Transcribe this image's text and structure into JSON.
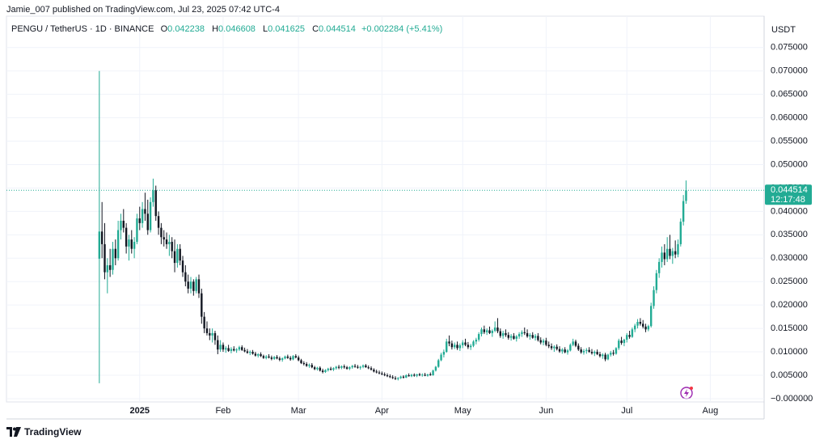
{
  "publisher": "Jamie_007 published on TradingView.com, Jul 23, 2025 07:42 UTC-4",
  "footer": "TradingView",
  "chart_data": {
    "type": "candlestick",
    "symbol": "PENGU / TetherUS · 1D · BINANCE",
    "ohlc_labels": [
      "O",
      "H",
      "L",
      "C"
    ],
    "change": "+0.002284 (+5.41%)",
    "y_unit": "USDT",
    "countdown": "12:17:48",
    "up_color": "#22ab94",
    "down_color": "#131722",
    "grid": true,
    "xlim": [
      -34.5,
      247
    ],
    "xticks": [
      {
        "value": 15,
        "label": "2025"
      },
      {
        "value": 46,
        "label": "Feb"
      },
      {
        "value": 74,
        "label": "Mar"
      },
      {
        "value": 105,
        "label": "Apr"
      },
      {
        "value": 135,
        "label": "May"
      },
      {
        "value": 166,
        "label": "Jun"
      },
      {
        "value": 196,
        "label": "Jul"
      },
      {
        "value": 227,
        "label": "Aug"
      }
    ],
    "ylim": [
      -0.0007,
      0.0817
    ],
    "yticks": [
      {
        "value": 0,
        "label": "−0.000000"
      },
      {
        "value": 0.005,
        "label": "0.005000"
      },
      {
        "value": 0.01,
        "label": "0.010000"
      },
      {
        "value": 0.015,
        "label": "0.015000"
      },
      {
        "value": 0.02,
        "label": "0.020000"
      },
      {
        "value": 0.025,
        "label": "0.025000"
      },
      {
        "value": 0.03,
        "label": "0.030000"
      },
      {
        "value": 0.035,
        "label": "0.035000"
      },
      {
        "value": 0.04,
        "label": "0.040000"
      },
      {
        "value": 0.045,
        "label": "0.045000"
      },
      {
        "value": 0.05,
        "label": "0.050000"
      },
      {
        "value": 0.055,
        "label": "0.055000"
      },
      {
        "value": 0.06,
        "label": "0.060000"
      },
      {
        "value": 0.065,
        "label": "0.065000"
      },
      {
        "value": 0.07,
        "label": "0.070000"
      },
      {
        "value": 0.075,
        "label": "0.075000"
      }
    ],
    "candles": [
      [
        0.0299,
        0.07,
        0.0033,
        0.0357
      ],
      [
        0.0357,
        0.042,
        0.03,
        0.033
      ],
      [
        0.033,
        0.0375,
        0.0255,
        0.027
      ],
      [
        0.027,
        0.03,
        0.0225,
        0.0285
      ],
      [
        0.0285,
        0.032,
        0.026,
        0.0275
      ],
      [
        0.0275,
        0.0335,
        0.0265,
        0.032
      ],
      [
        0.032,
        0.034,
        0.0285,
        0.03
      ],
      [
        0.03,
        0.038,
        0.0295,
        0.036
      ],
      [
        0.036,
        0.0395,
        0.034,
        0.038
      ],
      [
        0.038,
        0.0405,
        0.0355,
        0.0365
      ],
      [
        0.0365,
        0.0375,
        0.031,
        0.0325
      ],
      [
        0.0325,
        0.035,
        0.0295,
        0.034
      ],
      [
        0.034,
        0.036,
        0.031,
        0.032
      ],
      [
        0.032,
        0.0345,
        0.03,
        0.0335
      ],
      [
        0.0335,
        0.0395,
        0.033,
        0.0385
      ],
      [
        0.0385,
        0.041,
        0.036,
        0.0375
      ],
      [
        0.0375,
        0.042,
        0.0365,
        0.0405
      ],
      [
        0.0405,
        0.044,
        0.038,
        0.0395
      ],
      [
        0.0395,
        0.0425,
        0.035,
        0.036
      ],
      [
        0.036,
        0.043,
        0.0355,
        0.042
      ],
      [
        0.042,
        0.047,
        0.041,
        0.0445
      ],
      [
        0.0445,
        0.0455,
        0.038,
        0.039
      ],
      [
        0.039,
        0.04,
        0.035,
        0.0365
      ],
      [
        0.0365,
        0.0375,
        0.033,
        0.0345
      ],
      [
        0.0345,
        0.036,
        0.0325,
        0.034
      ],
      [
        0.034,
        0.0355,
        0.032,
        0.033
      ],
      [
        0.033,
        0.035,
        0.0305,
        0.0335
      ],
      [
        0.0335,
        0.0345,
        0.03,
        0.0315
      ],
      [
        0.0315,
        0.034,
        0.027,
        0.029
      ],
      [
        0.029,
        0.033,
        0.028,
        0.032
      ],
      [
        0.032,
        0.033,
        0.0285,
        0.0295
      ],
      [
        0.0295,
        0.0305,
        0.026,
        0.027
      ],
      [
        0.027,
        0.0285,
        0.024,
        0.025
      ],
      [
        0.025,
        0.0265,
        0.0225,
        0.0235
      ],
      [
        0.0235,
        0.026,
        0.0225,
        0.025
      ],
      [
        0.025,
        0.0255,
        0.022,
        0.023
      ],
      [
        0.023,
        0.026,
        0.0225,
        0.0255
      ],
      [
        0.0255,
        0.0265,
        0.0215,
        0.0225
      ],
      [
        0.0225,
        0.0235,
        0.016,
        0.0175
      ],
      [
        0.0175,
        0.0185,
        0.014,
        0.015
      ],
      [
        0.015,
        0.0165,
        0.0135,
        0.014
      ],
      [
        0.014,
        0.015,
        0.0125,
        0.0135
      ],
      [
        0.0135,
        0.015,
        0.012,
        0.014
      ],
      [
        0.014,
        0.0145,
        0.0115,
        0.0125
      ],
      [
        0.0125,
        0.0135,
        0.0095,
        0.0105
      ],
      [
        0.0105,
        0.0125,
        0.01,
        0.0115
      ],
      [
        0.0115,
        0.012,
        0.01,
        0.0105
      ],
      [
        0.0105,
        0.0112,
        0.0098,
        0.0108
      ],
      [
        0.0108,
        0.0115,
        0.01,
        0.0102
      ],
      [
        0.0102,
        0.011,
        0.0097,
        0.0106
      ],
      [
        0.0106,
        0.0112,
        0.0101,
        0.0103
      ],
      [
        0.0103,
        0.0108,
        0.0098,
        0.0105
      ],
      [
        0.0105,
        0.0113,
        0.0102,
        0.011
      ],
      [
        0.011,
        0.0114,
        0.0102,
        0.0104
      ],
      [
        0.0104,
        0.0109,
        0.0099,
        0.0101
      ],
      [
        0.0101,
        0.0106,
        0.0096,
        0.0098
      ],
      [
        0.0098,
        0.0103,
        0.0093,
        0.01
      ],
      [
        0.01,
        0.0104,
        0.0094,
        0.0096
      ],
      [
        0.0096,
        0.01,
        0.009,
        0.0092
      ],
      [
        0.0092,
        0.0097,
        0.0088,
        0.0095
      ],
      [
        0.0095,
        0.0099,
        0.0089,
        0.0091
      ],
      [
        0.0091,
        0.0094,
        0.0085,
        0.0087
      ],
      [
        0.0087,
        0.0093,
        0.0084,
        0.009
      ],
      [
        0.009,
        0.0095,
        0.0086,
        0.0088
      ],
      [
        0.0088,
        0.0092,
        0.0082,
        0.0085
      ],
      [
        0.0085,
        0.0091,
        0.0083,
        0.0089
      ],
      [
        0.0089,
        0.0093,
        0.0084,
        0.0086
      ],
      [
        0.0086,
        0.009,
        0.008,
        0.0083
      ],
      [
        0.0083,
        0.0088,
        0.0079,
        0.0086
      ],
      [
        0.0086,
        0.0092,
        0.0084,
        0.009
      ],
      [
        0.009,
        0.0094,
        0.0085,
        0.0087
      ],
      [
        0.0087,
        0.0091,
        0.0081,
        0.0084
      ],
      [
        0.0084,
        0.0093,
        0.0082,
        0.0091
      ],
      [
        0.0091,
        0.0095,
        0.0086,
        0.0088
      ],
      [
        0.0088,
        0.0092,
        0.008,
        0.0082
      ],
      [
        0.0082,
        0.0085,
        0.0074,
        0.0076
      ],
      [
        0.0076,
        0.008,
        0.0071,
        0.0074
      ],
      [
        0.0074,
        0.0078,
        0.0068,
        0.007
      ],
      [
        0.007,
        0.0075,
        0.0066,
        0.0072
      ],
      [
        0.0072,
        0.0076,
        0.0065,
        0.0067
      ],
      [
        0.0067,
        0.007,
        0.0061,
        0.0063
      ],
      [
        0.0063,
        0.0068,
        0.006,
        0.0066
      ],
      [
        0.0066,
        0.0069,
        0.0058,
        0.006
      ],
      [
        0.006,
        0.0064,
        0.0054,
        0.0057
      ],
      [
        0.0057,
        0.0063,
        0.0055,
        0.0061
      ],
      [
        0.0061,
        0.0066,
        0.0058,
        0.0064
      ],
      [
        0.0064,
        0.0068,
        0.006,
        0.0062
      ],
      [
        0.0062,
        0.0067,
        0.0059,
        0.0065
      ],
      [
        0.0065,
        0.007,
        0.0062,
        0.0068
      ],
      [
        0.0068,
        0.0072,
        0.0063,
        0.0066
      ],
      [
        0.0066,
        0.0071,
        0.0063,
        0.0069
      ],
      [
        0.0069,
        0.0073,
        0.0064,
        0.0067
      ],
      [
        0.0067,
        0.007,
        0.0062,
        0.0064
      ],
      [
        0.0064,
        0.0069,
        0.0061,
        0.0067
      ],
      [
        0.0067,
        0.0072,
        0.0064,
        0.007
      ],
      [
        0.007,
        0.0074,
        0.0066,
        0.0068
      ],
      [
        0.0068,
        0.0072,
        0.0064,
        0.0066
      ],
      [
        0.0066,
        0.007,
        0.0062,
        0.0068
      ],
      [
        0.0068,
        0.0073,
        0.0065,
        0.0071
      ],
      [
        0.0071,
        0.0074,
        0.0066,
        0.0067
      ],
      [
        0.0067,
        0.0071,
        0.0063,
        0.0065
      ],
      [
        0.0065,
        0.0069,
        0.006,
        0.0062
      ],
      [
        0.0062,
        0.0065,
        0.0056,
        0.0058
      ],
      [
        0.0058,
        0.0062,
        0.0054,
        0.0056
      ],
      [
        0.0056,
        0.006,
        0.0052,
        0.0054
      ],
      [
        0.0054,
        0.0058,
        0.005,
        0.0052
      ],
      [
        0.0052,
        0.0056,
        0.0048,
        0.005
      ],
      [
        0.005,
        0.0054,
        0.0046,
        0.0048
      ],
      [
        0.0048,
        0.0052,
        0.0044,
        0.0046
      ],
      [
        0.0046,
        0.005,
        0.0042,
        0.0044
      ],
      [
        0.0044,
        0.0048,
        0.004,
        0.0042
      ],
      [
        0.0042,
        0.0046,
        0.0039,
        0.0044
      ],
      [
        0.0044,
        0.0049,
        0.0042,
        0.0047
      ],
      [
        0.0047,
        0.005,
        0.0043,
        0.0045
      ],
      [
        0.0045,
        0.0052,
        0.0044,
        0.005
      ],
      [
        0.005,
        0.0054,
        0.0047,
        0.0048
      ],
      [
        0.0048,
        0.0053,
        0.0046,
        0.0051
      ],
      [
        0.0051,
        0.0054,
        0.0047,
        0.0049
      ],
      [
        0.0049,
        0.0053,
        0.0046,
        0.0052
      ],
      [
        0.0052,
        0.0055,
        0.0048,
        0.005
      ],
      [
        0.005,
        0.0054,
        0.0047,
        0.0051
      ],
      [
        0.0051,
        0.0055,
        0.0048,
        0.0049
      ],
      [
        0.0049,
        0.0053,
        0.0047,
        0.0052
      ],
      [
        0.0052,
        0.0056,
        0.0049,
        0.005
      ],
      [
        0.005,
        0.0062,
        0.0049,
        0.006
      ],
      [
        0.006,
        0.007,
        0.0058,
        0.0068
      ],
      [
        0.0068,
        0.0085,
        0.0066,
        0.0082
      ],
      [
        0.0082,
        0.0098,
        0.008,
        0.0094
      ],
      [
        0.0094,
        0.0105,
        0.0088,
        0.01
      ],
      [
        0.01,
        0.0128,
        0.0098,
        0.0122
      ],
      [
        0.0122,
        0.0135,
        0.0112,
        0.0118
      ],
      [
        0.0118,
        0.0124,
        0.0105,
        0.011
      ],
      [
        0.011,
        0.012,
        0.0106,
        0.0115
      ],
      [
        0.0115,
        0.0122,
        0.0104,
        0.0108
      ],
      [
        0.0108,
        0.0118,
        0.0102,
        0.0114
      ],
      [
        0.0114,
        0.0125,
        0.0108,
        0.012
      ],
      [
        0.012,
        0.0128,
        0.0112,
        0.0115
      ],
      [
        0.0115,
        0.0121,
        0.0106,
        0.011
      ],
      [
        0.011,
        0.0117,
        0.0104,
        0.0113
      ],
      [
        0.0113,
        0.0125,
        0.011,
        0.0122
      ],
      [
        0.0122,
        0.013,
        0.0116,
        0.0126
      ],
      [
        0.0126,
        0.0142,
        0.0122,
        0.0138
      ],
      [
        0.0138,
        0.0152,
        0.0133,
        0.0148
      ],
      [
        0.0148,
        0.0156,
        0.0138,
        0.0142
      ],
      [
        0.0142,
        0.015,
        0.0136,
        0.0146
      ],
      [
        0.0146,
        0.0154,
        0.0138,
        0.014
      ],
      [
        0.014,
        0.0148,
        0.0132,
        0.0145
      ],
      [
        0.0145,
        0.0165,
        0.0142,
        0.0152
      ],
      [
        0.0152,
        0.0172,
        0.014,
        0.0144
      ],
      [
        0.0144,
        0.015,
        0.013,
        0.0134
      ],
      [
        0.0134,
        0.0145,
        0.0128,
        0.014
      ],
      [
        0.014,
        0.0148,
        0.0132,
        0.0136
      ],
      [
        0.0136,
        0.0142,
        0.0126,
        0.013
      ],
      [
        0.013,
        0.0138,
        0.0124,
        0.0134
      ],
      [
        0.0134,
        0.014,
        0.0126,
        0.0128
      ],
      [
        0.0128,
        0.0136,
        0.0122,
        0.0133
      ],
      [
        0.0133,
        0.0142,
        0.0128,
        0.0138
      ],
      [
        0.0138,
        0.0146,
        0.0132,
        0.0142
      ],
      [
        0.0142,
        0.0152,
        0.0136,
        0.014
      ],
      [
        0.014,
        0.0148,
        0.013,
        0.0133
      ],
      [
        0.0133,
        0.014,
        0.0126,
        0.0136
      ],
      [
        0.0136,
        0.0142,
        0.0128,
        0.013
      ],
      [
        0.013,
        0.0138,
        0.0124,
        0.0134
      ],
      [
        0.0134,
        0.014,
        0.0122,
        0.0125
      ],
      [
        0.0125,
        0.0131,
        0.0116,
        0.012
      ],
      [
        0.012,
        0.0128,
        0.0114,
        0.0124
      ],
      [
        0.0124,
        0.013,
        0.0112,
        0.0115
      ],
      [
        0.0115,
        0.0122,
        0.0108,
        0.0112
      ],
      [
        0.0112,
        0.0118,
        0.0104,
        0.0108
      ],
      [
        0.0108,
        0.0114,
        0.01,
        0.0111
      ],
      [
        0.0111,
        0.0116,
        0.0103,
        0.0106
      ],
      [
        0.0106,
        0.0112,
        0.0098,
        0.0101
      ],
      [
        0.0101,
        0.0108,
        0.0096,
        0.0105
      ],
      [
        0.0105,
        0.011,
        0.0097,
        0.0099
      ],
      [
        0.0099,
        0.0106,
        0.0094,
        0.0103
      ],
      [
        0.0103,
        0.0118,
        0.0101,
        0.0115
      ],
      [
        0.0115,
        0.0128,
        0.0112,
        0.0122
      ],
      [
        0.0122,
        0.0126,
        0.011,
        0.0113
      ],
      [
        0.0113,
        0.0118,
        0.0102,
        0.0105
      ],
      [
        0.0105,
        0.011,
        0.0096,
        0.0099
      ],
      [
        0.0099,
        0.0106,
        0.0094,
        0.0102
      ],
      [
        0.0102,
        0.0108,
        0.0096,
        0.0104
      ],
      [
        0.0104,
        0.011,
        0.0098,
        0.01
      ],
      [
        0.01,
        0.0106,
        0.0094,
        0.0097
      ],
      [
        0.0097,
        0.0103,
        0.0091,
        0.01
      ],
      [
        0.01,
        0.0105,
        0.0093,
        0.0095
      ],
      [
        0.0095,
        0.01,
        0.0088,
        0.0091
      ],
      [
        0.0091,
        0.0097,
        0.0085,
        0.0094
      ],
      [
        0.0094,
        0.0098,
        0.008,
        0.0084
      ],
      [
        0.0084,
        0.0096,
        0.0082,
        0.0094
      ],
      [
        0.0094,
        0.0102,
        0.009,
        0.0098
      ],
      [
        0.0098,
        0.0104,
        0.0092,
        0.0096
      ],
      [
        0.0096,
        0.011,
        0.0094,
        0.0108
      ],
      [
        0.0108,
        0.0128,
        0.0104,
        0.0124
      ],
      [
        0.0124,
        0.0132,
        0.0115,
        0.0119
      ],
      [
        0.0119,
        0.0128,
        0.0112,
        0.0126
      ],
      [
        0.0126,
        0.014,
        0.012,
        0.0136
      ],
      [
        0.0136,
        0.0145,
        0.0128,
        0.0132
      ],
      [
        0.0132,
        0.0152,
        0.013,
        0.0148
      ],
      [
        0.0148,
        0.016,
        0.0142,
        0.0156
      ],
      [
        0.0156,
        0.017,
        0.015,
        0.0164
      ],
      [
        0.0164,
        0.0172,
        0.0156,
        0.016
      ],
      [
        0.016,
        0.0168,
        0.015,
        0.0154
      ],
      [
        0.0154,
        0.016,
        0.0142,
        0.0148
      ],
      [
        0.0148,
        0.0158,
        0.0144,
        0.0155
      ],
      [
        0.0155,
        0.0205,
        0.0152,
        0.0198
      ],
      [
        0.0198,
        0.024,
        0.0192,
        0.0232
      ],
      [
        0.0232,
        0.0275,
        0.0225,
        0.0268
      ],
      [
        0.0268,
        0.03,
        0.0258,
        0.0292
      ],
      [
        0.0292,
        0.0325,
        0.028,
        0.0312
      ],
      [
        0.0312,
        0.033,
        0.0285,
        0.0298
      ],
      [
        0.0298,
        0.0345,
        0.0292,
        0.032
      ],
      [
        0.032,
        0.035,
        0.0298,
        0.0305
      ],
      [
        0.0305,
        0.0322,
        0.0288,
        0.0315
      ],
      [
        0.0315,
        0.0338,
        0.03,
        0.0308
      ],
      [
        0.0308,
        0.034,
        0.0302,
        0.033
      ],
      [
        0.033,
        0.0385,
        0.0325,
        0.0378
      ],
      [
        0.0378,
        0.0435,
        0.037,
        0.0422
      ],
      [
        0.042238,
        0.046608,
        0.041625,
        0.044514
      ]
    ]
  }
}
